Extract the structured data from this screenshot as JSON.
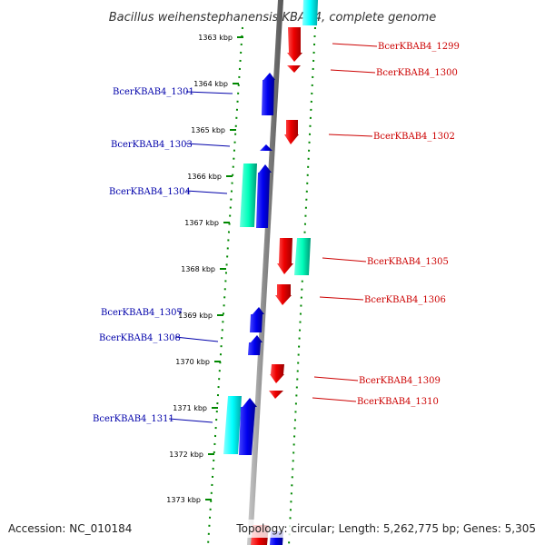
{
  "title": "Bacillus weihenstephanensis KBAB4, complete genome",
  "accession": "Accession: NC_010184",
  "topology": "Topology: circular; Length: 5,262,775 bp; Genes: 5,305",
  "colors": {
    "forward": "#ff0000",
    "reverse": "#0000ee",
    "rna": "#00ffcc",
    "other": "#00ffff",
    "axis": "#888888",
    "ruler": "#008800",
    "label_forward": "#cc0000",
    "label_reverse": "#0000aa"
  },
  "ruler_ticks": [
    "1363 kbp",
    "1364 kbp",
    "1365 kbp",
    "1366 kbp",
    "1367 kbp",
    "1368 kbp",
    "1369 kbp",
    "1370 kbp",
    "1371 kbp",
    "1372 kbp",
    "1373 kbp"
  ],
  "genes": [
    {
      "label": "BcerKBAB4_1299",
      "strand": "forward"
    },
    {
      "label": "BcerKBAB4_1300",
      "strand": "forward"
    },
    {
      "label": "BcerKBAB4_1301",
      "strand": "reverse"
    },
    {
      "label": "BcerKBAB4_1302",
      "strand": "forward"
    },
    {
      "label": "BcerKBAB4_1303",
      "strand": "reverse"
    },
    {
      "label": "BcerKBAB4_1304",
      "strand": "reverse"
    },
    {
      "label": "BcerKBAB4_1305",
      "strand": "forward"
    },
    {
      "label": "BcerKBAB4_1306",
      "strand": "forward"
    },
    {
      "label": "BcerKBAB4_1307",
      "strand": "reverse"
    },
    {
      "label": "BcerKBAB4_1308",
      "strand": "reverse"
    },
    {
      "label": "BcerKBAB4_1309",
      "strand": "forward"
    },
    {
      "label": "BcerKBAB4_1310",
      "strand": "forward"
    },
    {
      "label": "BcerKBAB4_1311",
      "strand": "reverse"
    }
  ]
}
